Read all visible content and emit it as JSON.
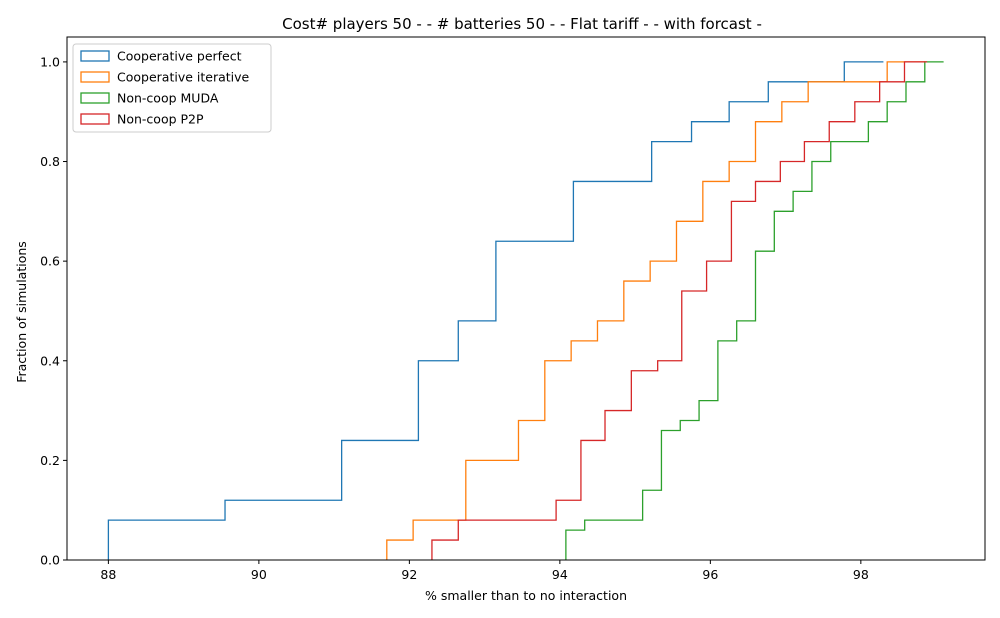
{
  "chart_data": {
    "type": "line",
    "style": "step-ecdf",
    "title": "Cost# players 50 - - # batteries 50 - - Flat tariff -  - with forcast -",
    "xlabel": "% smaller than to no interaction",
    "ylabel": "Fraction of simulations",
    "xlim": [
      87.45,
      99.65
    ],
    "ylim": [
      0,
      1.05
    ],
    "xticks": [
      88,
      90,
      92,
      94,
      96,
      98
    ],
    "yticks": [
      0.0,
      0.2,
      0.4,
      0.6,
      0.8,
      1.0
    ],
    "xtick_labels": [
      "88",
      "90",
      "92",
      "94",
      "96",
      "98"
    ],
    "ytick_labels": [
      "0.0",
      "0.2",
      "0.4",
      "0.6",
      "0.8",
      "1.0"
    ],
    "legend_position": "top-left",
    "series": [
      {
        "name": "Cooperative perfect",
        "color": "#1f77b4",
        "x": [
          88.0,
          89.55,
          91.1,
          92.12,
          92.65,
          93.15,
          94.18,
          95.22,
          95.75,
          96.25,
          96.77,
          97.78,
          98.3
        ],
        "y": [
          0.08,
          0.12,
          0.24,
          0.4,
          0.48,
          0.64,
          0.76,
          0.84,
          0.88,
          0.92,
          0.96,
          1.0,
          1.0
        ]
      },
      {
        "name": "Cooperative iterative",
        "color": "#ff7f0e",
        "x": [
          91.7,
          92.05,
          92.75,
          93.45,
          93.8,
          94.15,
          94.5,
          94.85,
          95.2,
          95.55,
          95.9,
          96.25,
          96.6,
          96.95,
          97.3,
          98.35,
          98.85
        ],
        "y": [
          0.04,
          0.08,
          0.2,
          0.28,
          0.4,
          0.44,
          0.48,
          0.56,
          0.6,
          0.68,
          0.76,
          0.8,
          0.88,
          0.92,
          0.96,
          1.0,
          1.0
        ]
      },
      {
        "name": "Non-coop MUDA",
        "color": "#2ca02c",
        "x": [
          94.08,
          94.33,
          95.1,
          95.35,
          95.6,
          95.85,
          96.1,
          96.35,
          96.6,
          96.85,
          97.1,
          97.35,
          97.6,
          98.1,
          98.35,
          98.6,
          98.85,
          99.1
        ],
        "y": [
          0.06,
          0.08,
          0.14,
          0.26,
          0.28,
          0.32,
          0.44,
          0.48,
          0.62,
          0.7,
          0.74,
          0.8,
          0.84,
          0.88,
          0.92,
          0.96,
          1.0,
          1.0
        ]
      },
      {
        "name": "Non-coop P2P",
        "color": "#d62728",
        "x": [
          92.3,
          92.65,
          93.95,
          94.28,
          94.6,
          94.95,
          95.3,
          95.62,
          95.95,
          96.28,
          96.6,
          96.93,
          97.25,
          97.58,
          97.92,
          98.25,
          98.58,
          98.88
        ],
        "y": [
          0.04,
          0.08,
          0.12,
          0.24,
          0.3,
          0.38,
          0.4,
          0.54,
          0.6,
          0.72,
          0.76,
          0.8,
          0.84,
          0.88,
          0.92,
          0.96,
          1.0,
          1.0
        ]
      }
    ]
  }
}
